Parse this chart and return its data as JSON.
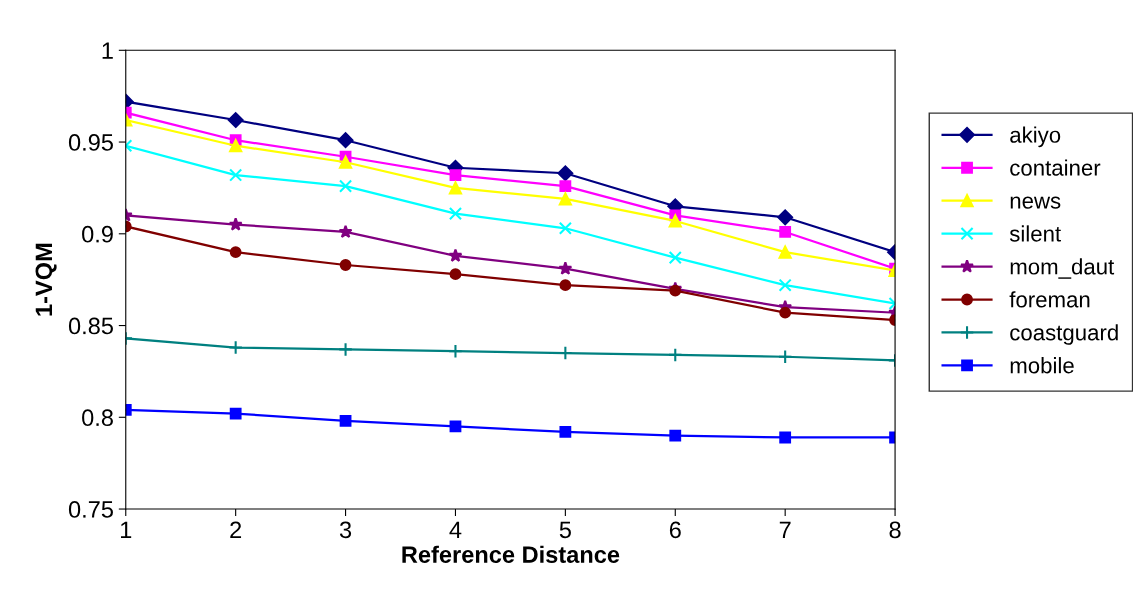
{
  "chart_data": {
    "type": "line",
    "xlabel": "Reference Distance",
    "ylabel": "1-VQM",
    "x": [
      1,
      2,
      3,
      4,
      5,
      6,
      7,
      8
    ],
    "xlim": [
      1,
      8
    ],
    "xticks": [
      1,
      2,
      3,
      4,
      5,
      6,
      7,
      8
    ],
    "ylim": [
      0.75,
      1
    ],
    "yticks": [
      0.75,
      0.8,
      0.85,
      0.9,
      0.95,
      1
    ],
    "grid": false,
    "legend": "right",
    "series": [
      {
        "name": "akiyo",
        "color": "#000080",
        "marker": "diamond",
        "values": [
          0.972,
          0.962,
          0.951,
          0.936,
          0.933,
          0.915,
          0.909,
          0.89
        ]
      },
      {
        "name": "container",
        "color": "#ff00ff",
        "marker": "square",
        "values": [
          0.966,
          0.951,
          0.942,
          0.932,
          0.926,
          0.91,
          0.901,
          0.881
        ]
      },
      {
        "name": "news",
        "color": "#ffff00",
        "marker": "triangle",
        "values": [
          0.962,
          0.948,
          0.939,
          0.925,
          0.919,
          0.907,
          0.89,
          0.88
        ]
      },
      {
        "name": "silent",
        "color": "#00ffff",
        "marker": "cross",
        "values": [
          0.948,
          0.932,
          0.926,
          0.911,
          0.903,
          0.887,
          0.872,
          0.862
        ]
      },
      {
        "name": "mom_daut",
        "color": "#800080",
        "marker": "star",
        "values": [
          0.91,
          0.905,
          0.901,
          0.888,
          0.881,
          0.87,
          0.86,
          0.857
        ]
      },
      {
        "name": "foreman",
        "color": "#800000",
        "marker": "circle",
        "values": [
          0.904,
          0.89,
          0.883,
          0.878,
          0.872,
          0.869,
          0.857,
          0.853
        ]
      },
      {
        "name": "coastguard",
        "color": "#008080",
        "marker": "plus",
        "values": [
          0.843,
          0.838,
          0.837,
          0.836,
          0.835,
          0.834,
          0.833,
          0.831
        ]
      },
      {
        "name": "mobile",
        "color": "#0000ff",
        "marker": "square",
        "values": [
          0.804,
          0.802,
          0.798,
          0.795,
          0.792,
          0.79,
          0.789,
          0.789
        ]
      }
    ]
  }
}
